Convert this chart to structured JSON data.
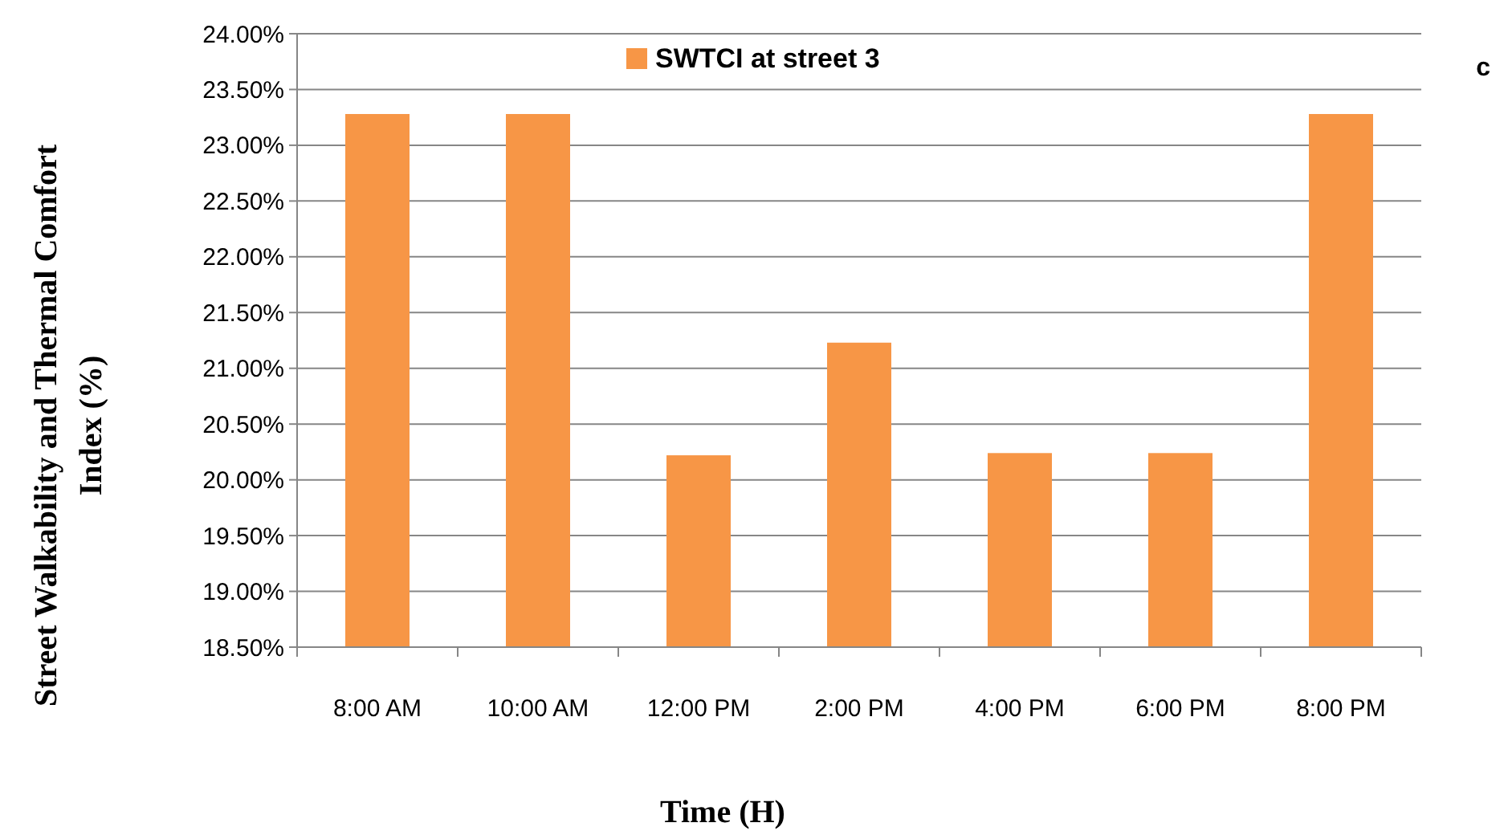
{
  "chart_data": {
    "type": "bar",
    "xlabel": "Time (H)",
    "ylabel": "Street Walkability and Thermal Comfort Index (%)",
    "categories": [
      "8:00 AM",
      "10:00 AM",
      "12:00 PM",
      "2:00 PM",
      "4:00 PM",
      "6:00 PM",
      "8:00 PM"
    ],
    "series": [
      {
        "name": "SWTCI at street 3",
        "color": "#f79646",
        "values": [
          23.28,
          23.28,
          20.22,
          21.23,
          20.24,
          20.24,
          23.28
        ]
      }
    ],
    "ylim": [
      18.5,
      24
    ],
    "yticks": [
      {
        "value": 18.5,
        "label": "18.50%"
      },
      {
        "value": 19,
        "label": "19.00%"
      },
      {
        "value": 19.5,
        "label": "19.50%"
      },
      {
        "value": 20,
        "label": "20.00%"
      },
      {
        "value": 20.5,
        "label": "20.50%"
      },
      {
        "value": 21,
        "label": "21.00%"
      },
      {
        "value": 21.5,
        "label": "21.50%"
      },
      {
        "value": 22,
        "label": "22.00%"
      },
      {
        "value": 22.5,
        "label": "22.50%"
      },
      {
        "value": 23,
        "label": "23.00%"
      },
      {
        "value": 23.5,
        "label": "23.50%"
      },
      {
        "value": 24,
        "label": "24.00%"
      }
    ],
    "grid": "y",
    "legend": "top",
    "annotations": [
      "c"
    ]
  }
}
